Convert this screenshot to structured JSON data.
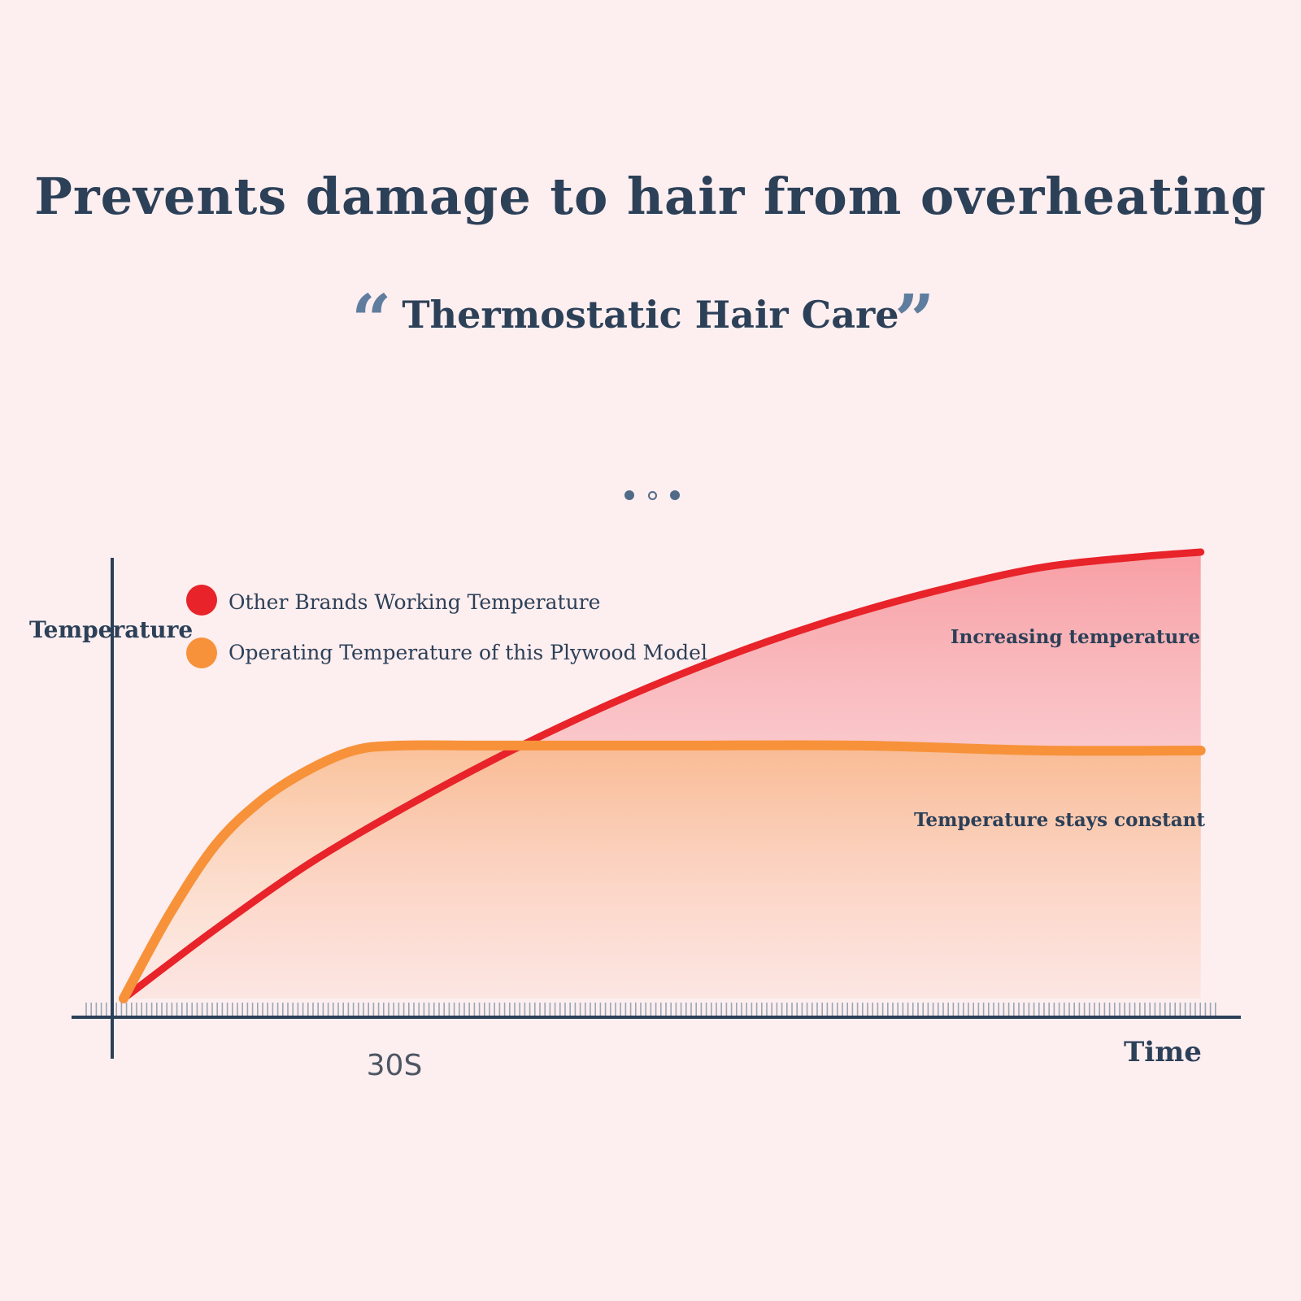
{
  "header": {
    "title": "Prevents damage to hair from overheating",
    "subtitle": "Thermostatic Hair Care",
    "quote_open": "“",
    "quote_close": "”"
  },
  "colors": {
    "background": "#fdeeef",
    "text": "#2c4058",
    "other_brands": "#e8232a",
    "this_model": "#f7923a"
  },
  "chart_data": {
    "type": "area",
    "title": "",
    "ylabel": "Temperature",
    "xlabel": "Time",
    "x_ticks": [
      {
        "x": 30,
        "label": "30S"
      }
    ],
    "xlim": [
      0,
      118
    ],
    "ylim": [
      0,
      100
    ],
    "legend_placement": "top-left",
    "grid": false,
    "series": [
      {
        "name": "Other Brands Working Temperature",
        "color": "#e8232a",
        "x": [
          0,
          10,
          20,
          30,
          40,
          50,
          60,
          70,
          80,
          90,
          100,
          110,
          117
        ],
        "y": [
          0,
          14,
          27,
          38,
          48,
          57,
          65,
          72,
          78,
          83,
          87,
          89,
          90
        ]
      },
      {
        "name": "Operating Temperature of this Plywood Model",
        "color": "#f7923a",
        "x": [
          0,
          5,
          10,
          15,
          20,
          25,
          30,
          40,
          60,
          80,
          100,
          117
        ],
        "y": [
          0,
          17,
          31,
          40,
          46,
          50,
          51,
          51,
          51,
          51,
          50,
          50
        ]
      }
    ],
    "annotations": [
      {
        "text": "Increasing temperature",
        "series": 0
      },
      {
        "text": "Temperature stays constant",
        "series": 1
      }
    ]
  }
}
